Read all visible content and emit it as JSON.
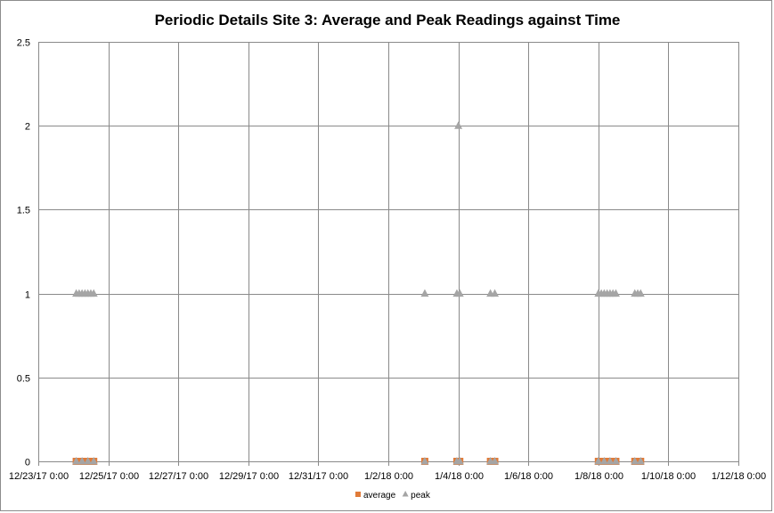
{
  "chart_data": {
    "type": "scatter",
    "title": "Periodic Details Site 3: Average and Peak Readings against Time",
    "xlabel": "",
    "ylabel": "",
    "x_ticks": [
      "12/23/17 0:00",
      "12/25/17 0:00",
      "12/27/17 0:00",
      "12/29/17 0:00",
      "12/31/17 0:00",
      "1/2/18 0:00",
      "1/4/18 0:00",
      "1/6/18 0:00",
      "1/8/18 0:00",
      "1/10/18 0:00",
      "1/12/18 0:00"
    ],
    "xlim": [
      "2017-12-23T00:00",
      "2018-01-12T00:00"
    ],
    "y_ticks": [
      "0",
      "0.5",
      "1",
      "1.5",
      "2",
      "2.5"
    ],
    "ylim": [
      0,
      2.5
    ],
    "grid": true,
    "legend_position": "bottom",
    "series": [
      {
        "name": "average",
        "color": "#e07b39",
        "marker": "square",
        "points": [
          {
            "x": "2017-12-24T02:00",
            "y": 0
          },
          {
            "x": "2017-12-24T04:00",
            "y": 0
          },
          {
            "x": "2017-12-24T06:00",
            "y": 0
          },
          {
            "x": "2017-12-24T08:00",
            "y": 0
          },
          {
            "x": "2017-12-24T10:00",
            "y": 0
          },
          {
            "x": "2017-12-24T12:00",
            "y": 0
          },
          {
            "x": "2017-12-24T14:00",
            "y": 0
          },
          {
            "x": "2018-01-03T01:00",
            "y": 0
          },
          {
            "x": "2018-01-03T23:00",
            "y": 0
          },
          {
            "x": "2018-01-04T01:00",
            "y": 0
          },
          {
            "x": "2018-01-04T22:00",
            "y": 0
          },
          {
            "x": "2018-01-05T01:00",
            "y": 0
          },
          {
            "x": "2018-01-08T00:00",
            "y": 0
          },
          {
            "x": "2018-01-08T02:00",
            "y": 0
          },
          {
            "x": "2018-01-08T04:00",
            "y": 0
          },
          {
            "x": "2018-01-08T06:00",
            "y": 0
          },
          {
            "x": "2018-01-08T08:00",
            "y": 0
          },
          {
            "x": "2018-01-08T10:00",
            "y": 0
          },
          {
            "x": "2018-01-08T12:00",
            "y": 0
          },
          {
            "x": "2018-01-09T01:00",
            "y": 0
          },
          {
            "x": "2018-01-09T03:00",
            "y": 0
          },
          {
            "x": "2018-01-09T05:00",
            "y": 0
          }
        ]
      },
      {
        "name": "peak",
        "color": "#a5a5a5",
        "marker": "triangle",
        "points": [
          {
            "x": "2017-12-24T02:00",
            "y": 0
          },
          {
            "x": "2017-12-24T06:00",
            "y": 0
          },
          {
            "x": "2017-12-24T10:00",
            "y": 0
          },
          {
            "x": "2017-12-24T14:00",
            "y": 0
          },
          {
            "x": "2017-12-24T02:00",
            "y": 1
          },
          {
            "x": "2017-12-24T04:00",
            "y": 1
          },
          {
            "x": "2017-12-24T06:00",
            "y": 1
          },
          {
            "x": "2017-12-24T08:00",
            "y": 1
          },
          {
            "x": "2017-12-24T10:00",
            "y": 1
          },
          {
            "x": "2017-12-24T12:00",
            "y": 1
          },
          {
            "x": "2017-12-24T14:00",
            "y": 1
          },
          {
            "x": "2018-01-03T01:00",
            "y": 0
          },
          {
            "x": "2018-01-03T01:00",
            "y": 1
          },
          {
            "x": "2018-01-03T23:00",
            "y": 0
          },
          {
            "x": "2018-01-04T01:00",
            "y": 0
          },
          {
            "x": "2018-01-03T23:00",
            "y": 1
          },
          {
            "x": "2018-01-04T01:00",
            "y": 1
          },
          {
            "x": "2018-01-04T00:00",
            "y": 2
          },
          {
            "x": "2018-01-04T22:00",
            "y": 0
          },
          {
            "x": "2018-01-05T01:00",
            "y": 0
          },
          {
            "x": "2018-01-04T22:00",
            "y": 1
          },
          {
            "x": "2018-01-05T01:00",
            "y": 1
          },
          {
            "x": "2018-01-08T00:00",
            "y": 0
          },
          {
            "x": "2018-01-08T04:00",
            "y": 0
          },
          {
            "x": "2018-01-08T08:00",
            "y": 0
          },
          {
            "x": "2018-01-08T12:00",
            "y": 0
          },
          {
            "x": "2018-01-08T00:00",
            "y": 1
          },
          {
            "x": "2018-01-08T02:00",
            "y": 1
          },
          {
            "x": "2018-01-08T04:00",
            "y": 1
          },
          {
            "x": "2018-01-08T06:00",
            "y": 1
          },
          {
            "x": "2018-01-08T08:00",
            "y": 1
          },
          {
            "x": "2018-01-08T10:00",
            "y": 1
          },
          {
            "x": "2018-01-08T12:00",
            "y": 1
          },
          {
            "x": "2018-01-09T01:00",
            "y": 0
          },
          {
            "x": "2018-01-09T05:00",
            "y": 0
          },
          {
            "x": "2018-01-09T01:00",
            "y": 1
          },
          {
            "x": "2018-01-09T03:00",
            "y": 1
          },
          {
            "x": "2018-01-09T05:00",
            "y": 1
          }
        ]
      }
    ]
  }
}
